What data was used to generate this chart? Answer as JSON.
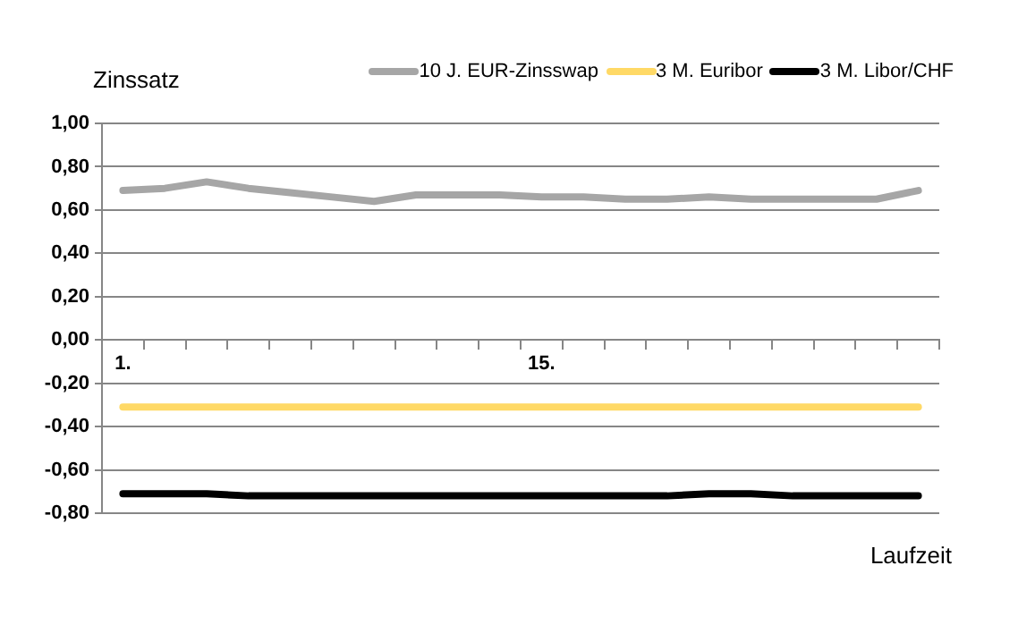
{
  "chart_data": {
    "type": "line",
    "ylabel": "Zinssatz",
    "xlabel": "Laufzeit",
    "categories": [
      "1.",
      null,
      null,
      null,
      null,
      null,
      null,
      null,
      null,
      null,
      "15.",
      null,
      null,
      null,
      null,
      null,
      null,
      null,
      null,
      null
    ],
    "series": [
      {
        "name": "10 J. EUR-Zinsswap",
        "color": "#a6a6a6",
        "values": [
          0.69,
          0.7,
          0.73,
          0.7,
          0.68,
          0.66,
          0.64,
          0.67,
          0.67,
          0.67,
          0.66,
          0.66,
          0.65,
          0.65,
          0.66,
          0.65,
          0.65,
          0.65,
          0.65,
          0.69
        ]
      },
      {
        "name": "3 M. Euribor",
        "color": "#ffd966",
        "values": [
          -0.31,
          -0.31,
          -0.31,
          -0.31,
          -0.31,
          -0.31,
          -0.31,
          -0.31,
          -0.31,
          -0.31,
          -0.31,
          -0.31,
          -0.31,
          -0.31,
          -0.31,
          -0.31,
          -0.31,
          -0.31,
          -0.31,
          -0.31
        ]
      },
      {
        "name": "3 M. Libor/CHF",
        "color": "#000000",
        "values": [
          -0.71,
          -0.71,
          -0.71,
          -0.72,
          -0.72,
          -0.72,
          -0.72,
          -0.72,
          -0.72,
          -0.72,
          -0.72,
          -0.72,
          -0.72,
          -0.72,
          -0.71,
          -0.71,
          -0.72,
          -0.72,
          -0.72,
          -0.72
        ]
      }
    ],
    "ylim": [
      -0.8,
      1.0
    ],
    "yticks": [
      {
        "value": -0.8,
        "label": "-0,80"
      },
      {
        "value": -0.6,
        "label": "-0,60"
      },
      {
        "value": -0.4,
        "label": "-0,40"
      },
      {
        "value": -0.2,
        "label": "-0,20"
      },
      {
        "value": 0,
        "label": "0,00"
      },
      {
        "value": 0.2,
        "label": "0,20"
      },
      {
        "value": 0.4,
        "label": "0,40"
      },
      {
        "value": 0.6,
        "label": "0,60"
      },
      {
        "value": 0.8,
        "label": "0,80"
      },
      {
        "value": 1.0,
        "label": "1,00"
      }
    ],
    "grid": "y",
    "legend": "top right",
    "marker": "none",
    "line_style": "solid"
  }
}
